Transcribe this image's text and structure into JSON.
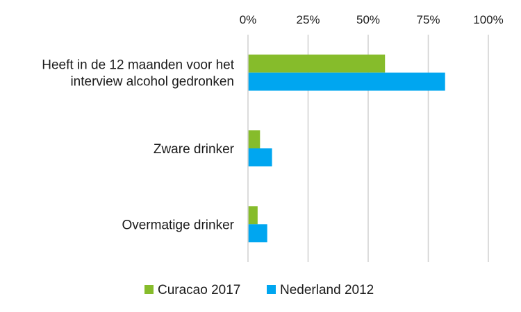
{
  "chart_data": {
    "type": "bar",
    "orientation": "horizontal",
    "categories": [
      [
        "Heeft in de 12 maanden voor het",
        "interview alcohol gedronken"
      ],
      [
        "Zware drinker"
      ],
      [
        "Overmatige drinker"
      ]
    ],
    "series": [
      {
        "name": "Curacao 2017",
        "color": "#86bc2b",
        "values": [
          57,
          5,
          4
        ]
      },
      {
        "name": "Nederland 2012",
        "color": "#00a6f0",
        "values": [
          82,
          10,
          8
        ]
      }
    ],
    "xlim": [
      0,
      100
    ],
    "xticks": [
      0,
      25,
      50,
      75,
      100
    ],
    "xtick_labels": [
      "0%",
      "25%",
      "50%",
      "75%",
      "100%"
    ],
    "x_axis_position": "top",
    "grid": "vertical",
    "legend": "bottom"
  }
}
